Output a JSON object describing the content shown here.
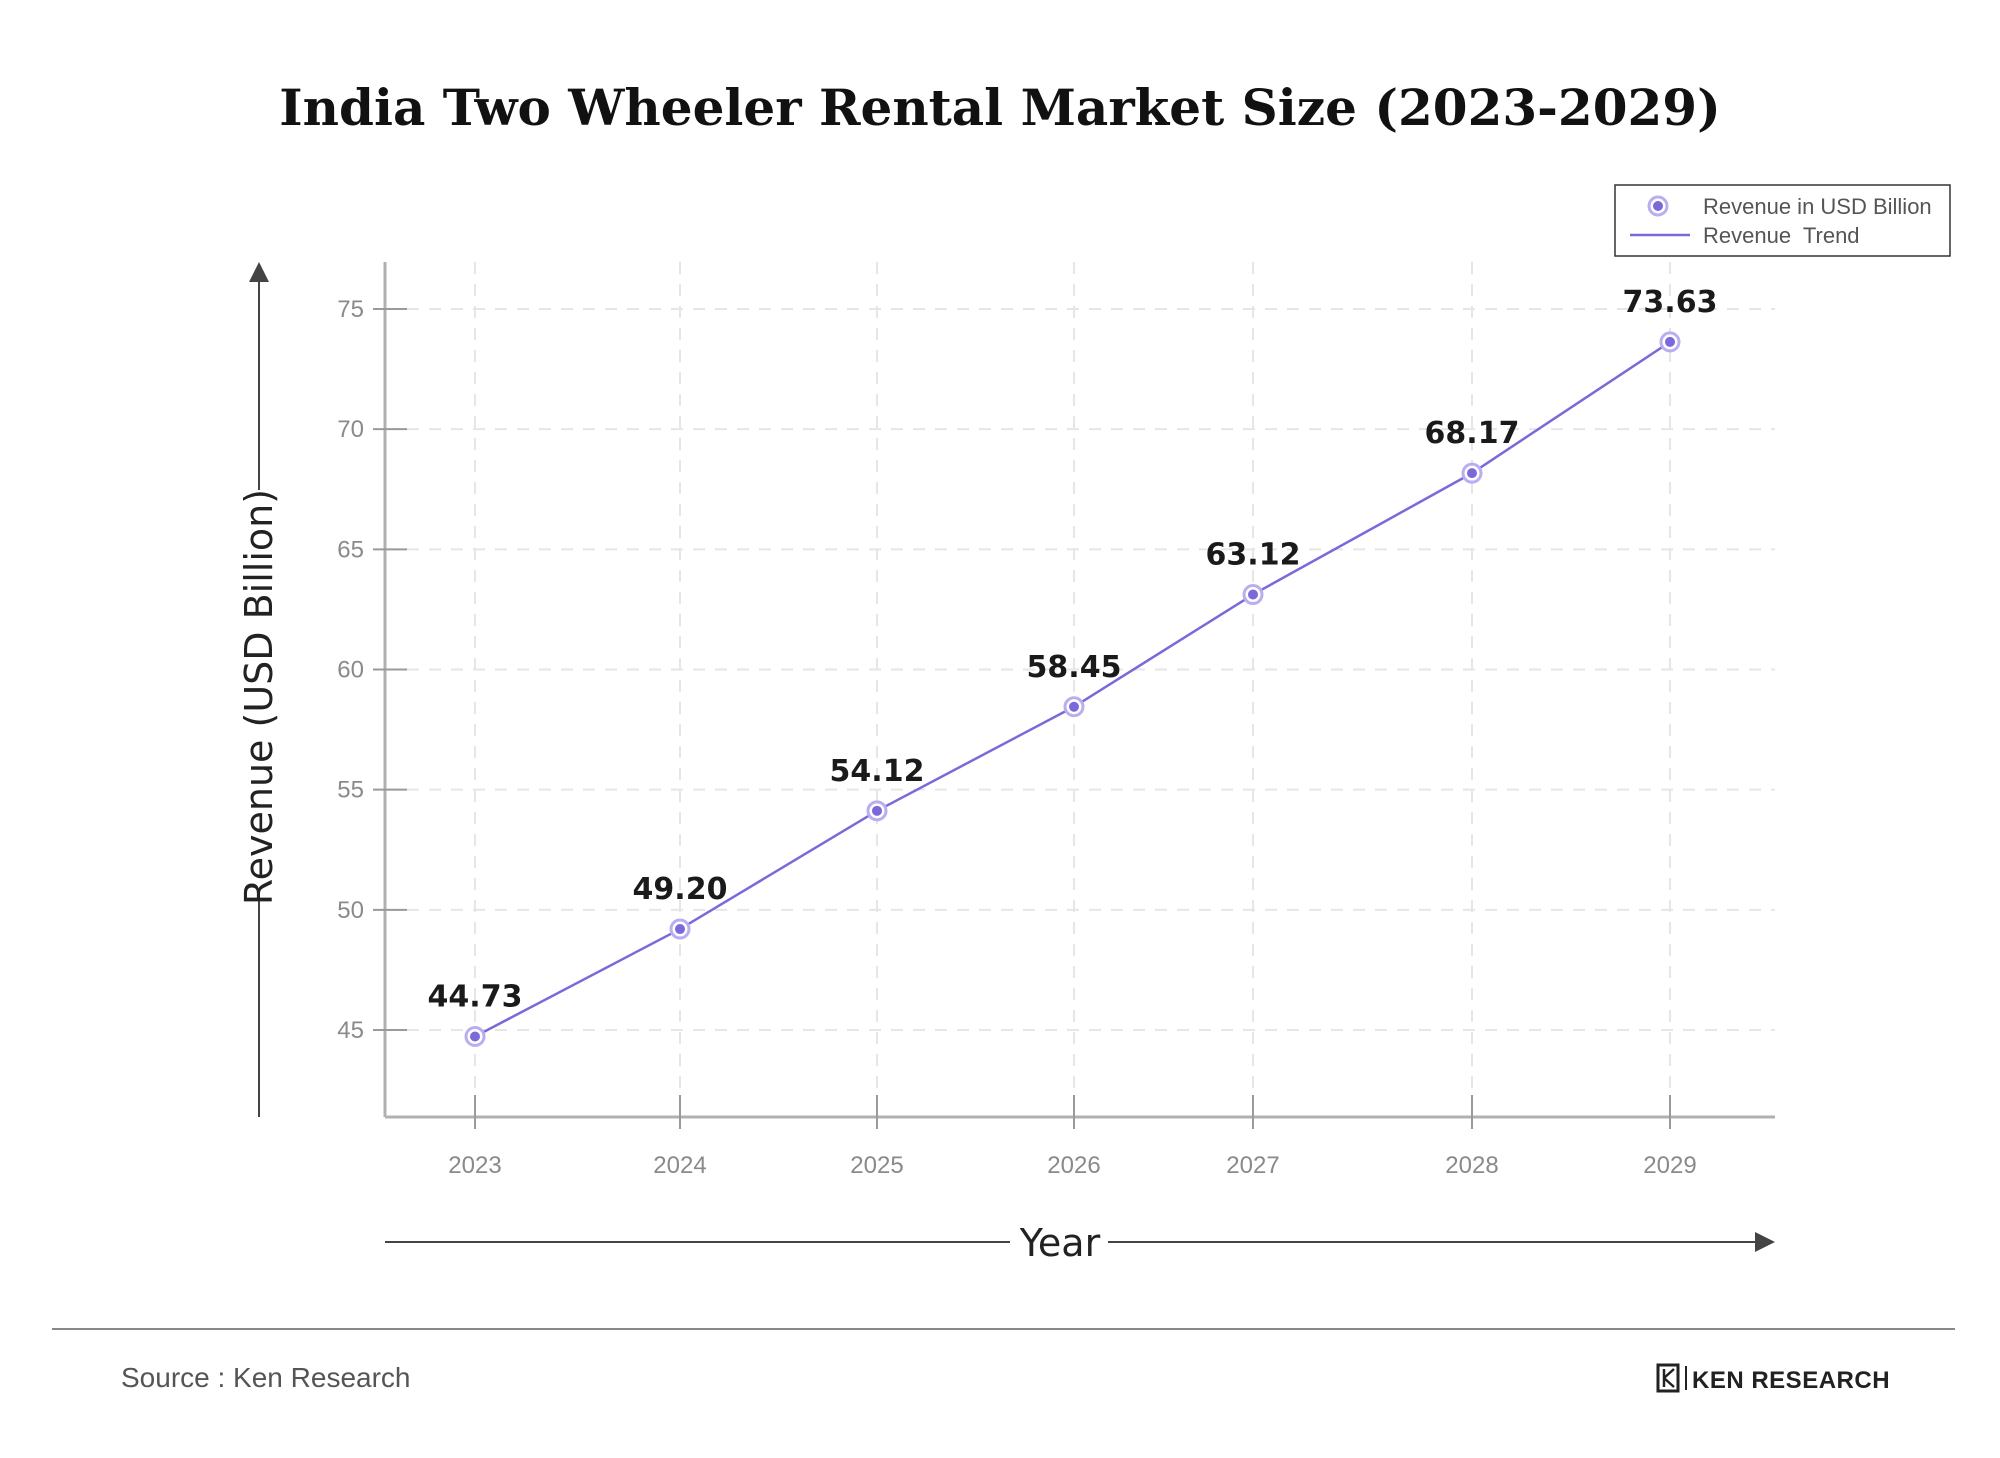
{
  "chart_data": {
    "type": "line",
    "title": "India Two Wheeler Rental Market Size (2023-2029)",
    "xlabel": "Year",
    "ylabel": "Revenue (USD Billion)",
    "categories": [
      "2023",
      "2024",
      "2025",
      "2026",
      "2027",
      "2028",
      "2029"
    ],
    "series": [
      {
        "name": "Revenue in USD Billion",
        "values": [
          44.73,
          49.2,
          54.12,
          58.45,
          63.12,
          68.17,
          73.63
        ],
        "data_labels": [
          "44.73",
          "49.20",
          "54.12",
          "58.45",
          "63.12",
          "68.17",
          "73.63"
        ]
      }
    ],
    "trend_name": "Revenue  Trend",
    "yticks": [
      45,
      50,
      55,
      60,
      65,
      70,
      75
    ],
    "ylim": [
      41.3,
      77
    ],
    "grid": true,
    "legend_position": "top-right",
    "colors": {
      "line": "#7b68d9",
      "marker_fill": "#7b68d9",
      "marker_ring": "#b8aef0",
      "grid": "#e6e6e6",
      "axis": "#b0b0b0"
    }
  },
  "footer": {
    "source": "Source : Ken Research",
    "brand": "KEN RESEARCH"
  }
}
